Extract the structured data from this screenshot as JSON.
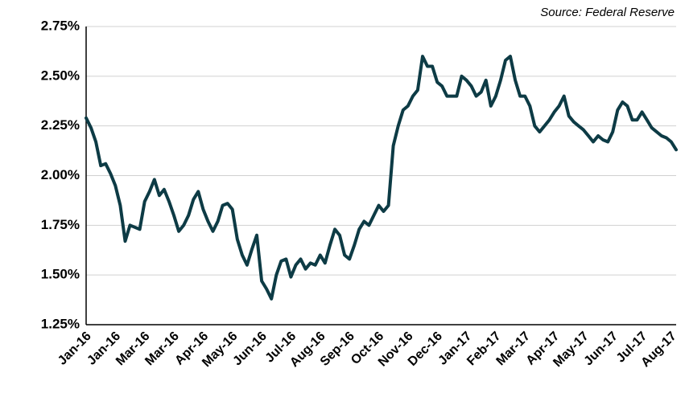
{
  "chart_data": {
    "type": "line",
    "source": "Source: Federal Reserve",
    "categories": [
      "Jan-16",
      null,
      null,
      null,
      null,
      null,
      "Jan-16",
      null,
      null,
      null,
      null,
      null,
      "Mar-16",
      null,
      null,
      null,
      null,
      null,
      "Mar-16",
      null,
      null,
      null,
      null,
      null,
      "Apr-16",
      null,
      null,
      null,
      null,
      null,
      "May-16",
      null,
      null,
      null,
      null,
      null,
      "Jun-16",
      null,
      null,
      null,
      null,
      null,
      "Jul-16",
      null,
      null,
      null,
      null,
      null,
      "Aug-16",
      null,
      null,
      null,
      null,
      null,
      "Sep-16",
      null,
      null,
      null,
      null,
      null,
      "Oct-16",
      null,
      null,
      null,
      null,
      null,
      "Nov-16",
      null,
      null,
      null,
      null,
      null,
      "Dec-16",
      null,
      null,
      null,
      null,
      null,
      "Jan-17",
      null,
      null,
      null,
      null,
      null,
      "Feb-17",
      null,
      null,
      null,
      null,
      null,
      "Mar-17",
      null,
      null,
      null,
      null,
      null,
      "Apr-17",
      null,
      null,
      null,
      null,
      null,
      "May-17",
      null,
      null,
      null,
      null,
      null,
      "Jun-17",
      null,
      null,
      null,
      null,
      null,
      "Jul-17",
      null,
      null,
      null,
      null,
      null,
      "Aug-17",
      null
    ],
    "series": [
      {
        "color": "#0d3b45",
        "values": [
          2.29,
          2.24,
          2.17,
          2.05,
          2.06,
          2.01,
          1.95,
          1.85,
          1.67,
          1.75,
          1.74,
          1.73,
          1.87,
          1.92,
          1.98,
          1.9,
          1.93,
          1.87,
          1.8,
          1.72,
          1.75,
          1.8,
          1.88,
          1.92,
          1.83,
          1.77,
          1.72,
          1.77,
          1.85,
          1.86,
          1.83,
          1.68,
          1.6,
          1.55,
          1.63,
          1.7,
          1.47,
          1.43,
          1.38,
          1.5,
          1.57,
          1.58,
          1.49,
          1.55,
          1.58,
          1.53,
          1.56,
          1.55,
          1.6,
          1.56,
          1.65,
          1.73,
          1.7,
          1.6,
          1.58,
          1.65,
          1.73,
          1.77,
          1.75,
          1.8,
          1.85,
          1.82,
          1.85,
          2.15,
          2.25,
          2.33,
          2.35,
          2.4,
          2.43,
          2.6,
          2.55,
          2.55,
          2.47,
          2.45,
          2.4,
          2.4,
          2.4,
          2.5,
          2.48,
          2.45,
          2.4,
          2.42,
          2.48,
          2.35,
          2.4,
          2.48,
          2.58,
          2.6,
          2.48,
          2.4,
          2.4,
          2.35,
          2.25,
          2.22,
          2.25,
          2.28,
          2.32,
          2.35,
          2.4,
          2.3,
          2.27,
          2.25,
          2.23,
          2.2,
          2.17,
          2.2,
          2.18,
          2.17,
          2.22,
          2.33,
          2.37,
          2.35,
          2.28,
          2.28,
          2.32,
          2.28,
          2.24,
          2.22,
          2.2,
          2.19,
          2.17,
          2.13
        ]
      }
    ],
    "ylim": [
      1.25,
      2.75
    ],
    "yticks": [
      {
        "value": 1.25,
        "label": "1.25%"
      },
      {
        "value": 1.5,
        "label": "1.50%"
      },
      {
        "value": 1.75,
        "label": "1.75%"
      },
      {
        "value": 2.0,
        "label": "2.00%"
      },
      {
        "value": 2.25,
        "label": "2.25%"
      },
      {
        "value": 2.5,
        "label": "2.50%"
      },
      {
        "value": 2.75,
        "label": "2.75%"
      }
    ],
    "grid": true
  }
}
